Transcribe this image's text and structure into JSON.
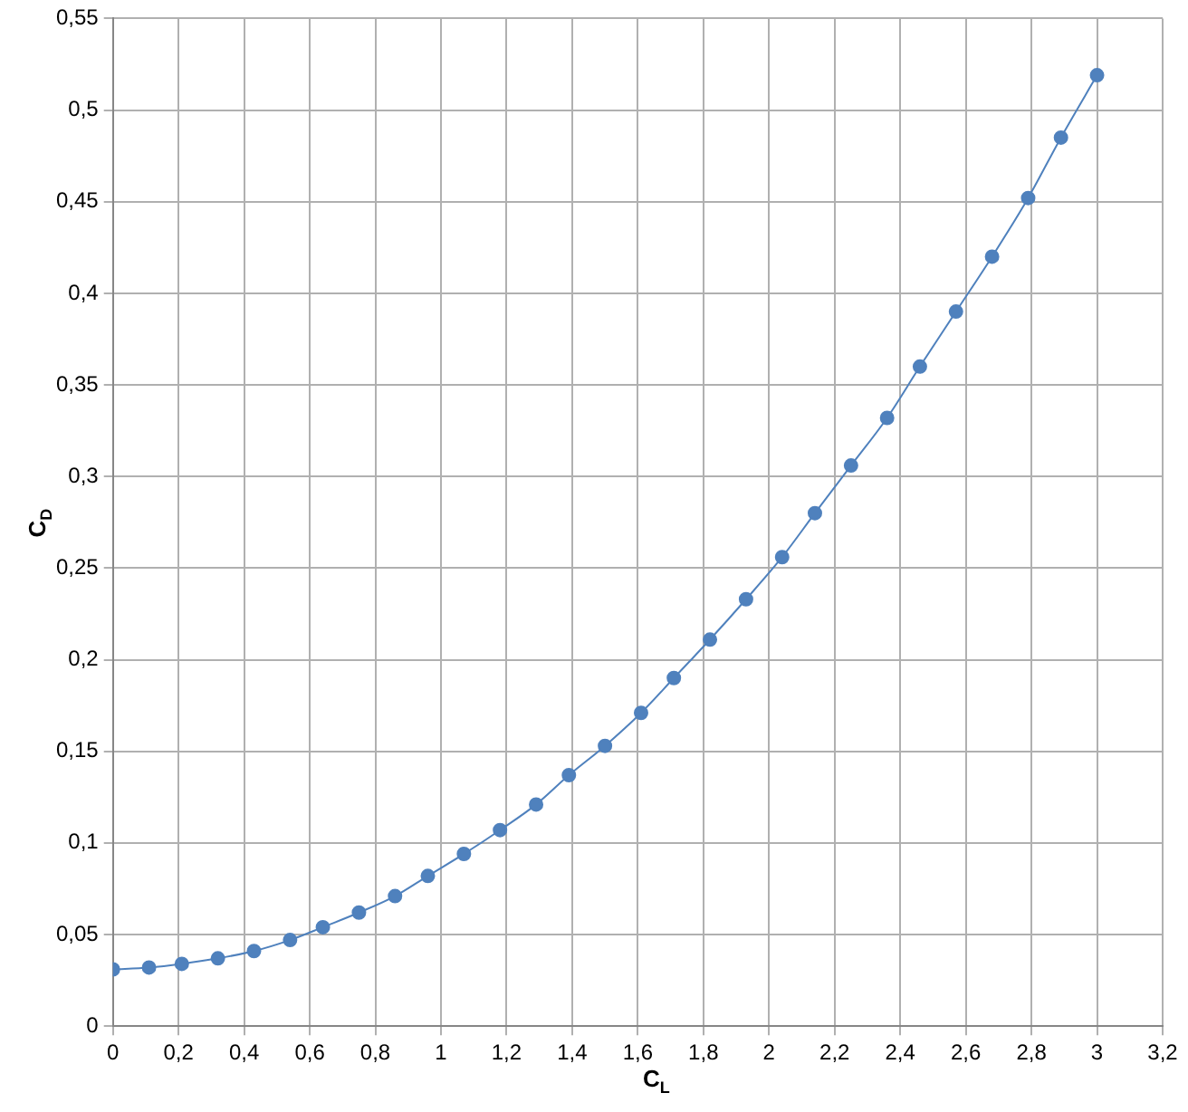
{
  "chart_data": {
    "type": "line",
    "xlabel": "C$_{L}$",
    "ylabel": "C$_{D}$",
    "x": [
      0,
      0.11,
      0.21,
      0.32,
      0.43,
      0.54,
      0.64,
      0.75,
      0.86,
      0.96,
      1.07,
      1.18,
      1.29,
      1.39,
      1.5,
      1.61,
      1.71,
      1.82,
      1.93,
      2.04,
      2.14,
      2.25,
      2.36,
      2.46,
      2.57,
      2.68,
      2.79,
      2.89,
      3
    ],
    "series": [
      {
        "color": "#4f81bd",
        "values": [
          0.031,
          0.032,
          0.034,
          0.037,
          0.041,
          0.047,
          0.054,
          0.062,
          0.071,
          0.082,
          0.094,
          0.107,
          0.121,
          0.137,
          0.153,
          0.171,
          0.19,
          0.211,
          0.233,
          0.256,
          0.28,
          0.306,
          0.332,
          0.36,
          0.39,
          0.42,
          0.452,
          0.485,
          0.519
        ]
      }
    ],
    "xlim": [
      0,
      3.2
    ],
    "xticks": [
      0,
      {
        "value": 0.2,
        "label": "0,2"
      },
      {
        "value": 0.4,
        "label": "0,4"
      },
      {
        "value": 0.6,
        "label": "0,6"
      },
      {
        "value": 0.8,
        "label": "0,8"
      },
      1,
      {
        "value": 1.2,
        "label": "1,2"
      },
      {
        "value": 1.4,
        "label": "1,4"
      },
      {
        "value": 1.6,
        "label": "1,6"
      },
      {
        "value": 1.8,
        "label": "1,8"
      },
      2,
      {
        "value": 2.2,
        "label": "2,2"
      },
      {
        "value": 2.4,
        "label": "2,4"
      },
      {
        "value": 2.6,
        "label": "2,6"
      },
      {
        "value": 2.8,
        "label": "2,8"
      },
      3,
      {
        "value": 3.2,
        "label": "3,2"
      }
    ],
    "ylim": [
      0,
      0.55
    ],
    "yticks": [
      0,
      {
        "value": 0.05,
        "label": "0,05"
      },
      {
        "value": 0.1,
        "label": "0,1"
      },
      {
        "value": 0.15,
        "label": "0,15"
      },
      {
        "value": 0.2,
        "label": "0,2"
      },
      {
        "value": 0.25,
        "label": "0,25"
      },
      {
        "value": 0.3,
        "label": "0,3"
      },
      {
        "value": 0.35,
        "label": "0,35"
      },
      {
        "value": 0.4,
        "label": "0,4"
      },
      {
        "value": 0.45,
        "label": "0,45"
      },
      {
        "value": 0.5,
        "label": "0,5"
      },
      {
        "value": 0.55,
        "label": "0,55"
      }
    ],
    "grid": true,
    "legend": false,
    "marker": "circle",
    "line_style": "solid"
  }
}
